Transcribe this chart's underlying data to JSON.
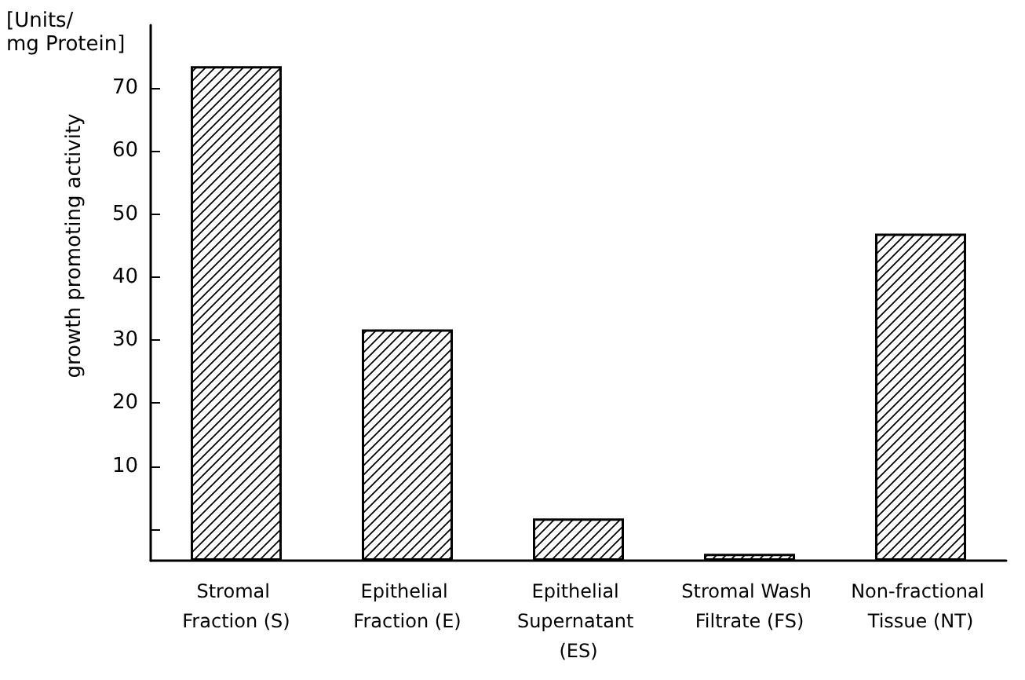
{
  "chart_data": {
    "type": "bar",
    "ylabel": "growth promoting activity",
    "annotations": [
      "[Units/ mg Protein]"
    ],
    "categories": [
      "Stromal Fraction (S)",
      "Epithelial Fraction (E)",
      "Epithelial Supernatant (ES)",
      "Stromal Wash Filtrate (FS)",
      "Non-fractional Tissue (NT)"
    ],
    "base": [
      -5,
      -5,
      -5,
      -5,
      -5
    ],
    "values": [
      78.5,
      36.7,
      6.7,
      1.1,
      51.9
    ],
    "color": "#000000",
    "ylim": [
      -5,
      80
    ],
    "yticks": [
      {
        "value": 0,
        "label": null
      },
      10,
      20,
      30,
      40,
      50,
      60,
      70
    ],
    "grid": false
  }
}
